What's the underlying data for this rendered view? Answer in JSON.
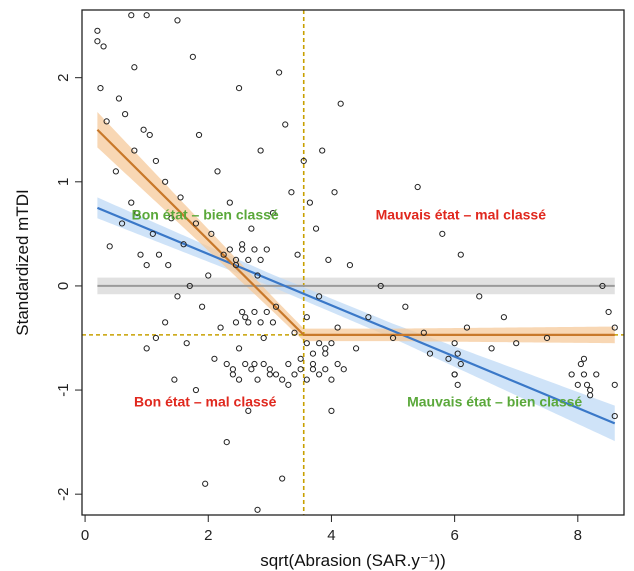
{
  "chart_data": {
    "type": "scatter",
    "xlabel": "sqrt(Abrasion (SAR.y⁻¹))",
    "ylabel": "Standardized mTDI",
    "xlim": [
      -0.05,
      8.75
    ],
    "ylim": [
      -2.2,
      2.65
    ],
    "x_ticks": [
      {
        "v": 0,
        "label": "0"
      },
      {
        "v": 2,
        "label": "2"
      },
      {
        "v": 4,
        "label": "4"
      },
      {
        "v": 6,
        "label": "6"
      },
      {
        "v": 8,
        "label": "8"
      }
    ],
    "y_ticks": [
      {
        "v": -2,
        "label": "-2"
      },
      {
        "v": -1,
        "label": "-1"
      },
      {
        "v": 0,
        "label": "0"
      },
      {
        "v": 1,
        "label": "1"
      },
      {
        "v": 2,
        "label": "2"
      }
    ],
    "grid": false,
    "threshold_x": 3.55,
    "threshold_y": -0.47,
    "threshold_color": "#c8a000",
    "null_line": {
      "y": 0,
      "color": "#9a9a9a",
      "band_color": "#d9d9d9"
    },
    "orange_fit": {
      "color": "#c8782a",
      "band_color": "#f5c99b",
      "points": [
        [
          0.2,
          1.5
        ],
        [
          3.55,
          -0.47
        ],
        [
          8.6,
          -0.47
        ]
      ],
      "band_halfwidth": [
        [
          0.2,
          0.17
        ],
        [
          1.5,
          0.12
        ],
        [
          3.0,
          0.07
        ],
        [
          3.55,
          0.06
        ],
        [
          5.0,
          0.06
        ],
        [
          8.6,
          0.08
        ]
      ]
    },
    "blue_fit": {
      "color": "#3a78c8",
      "band_color": "#bfdaf5",
      "points": [
        [
          0.2,
          0.75
        ],
        [
          8.6,
          -1.32
        ]
      ],
      "band_halfwidth": [
        [
          0.2,
          0.1
        ],
        [
          3.0,
          0.06
        ],
        [
          5.0,
          0.07
        ],
        [
          8.6,
          0.17
        ]
      ]
    },
    "point_color": "#222222",
    "quadrant_labels": [
      {
        "text": "Bon état – bien classé",
        "color": "#5aa83a",
        "x": 1.95,
        "y": 0.64
      },
      {
        "text": "Mauvais état – mal classé",
        "color": "#e0281e",
        "x": 6.1,
        "y": 0.64
      },
      {
        "text": "Bon état – mal classé",
        "color": "#e0281e",
        "x": 1.95,
        "y": -1.16
      },
      {
        "text": "Mauvais état – bien classé",
        "color": "#5aa83a",
        "x": 6.65,
        "y": -1.16
      }
    ],
    "points": [
      [
        0.2,
        2.45
      ],
      [
        0.2,
        2.35
      ],
      [
        0.25,
        1.9
      ],
      [
        0.3,
        2.3
      ],
      [
        0.35,
        1.58
      ],
      [
        0.4,
        0.38
      ],
      [
        0.5,
        1.1
      ],
      [
        0.55,
        1.8
      ],
      [
        0.6,
        0.6
      ],
      [
        0.65,
        1.65
      ],
      [
        0.75,
        0.8
      ],
      [
        0.75,
        2.6
      ],
      [
        0.8,
        1.3
      ],
      [
        0.8,
        2.1
      ],
      [
        0.85,
        0.7
      ],
      [
        0.9,
        0.3
      ],
      [
        0.95,
        1.5
      ],
      [
        1.0,
        -0.6
      ],
      [
        1.0,
        0.2
      ],
      [
        1.0,
        2.6
      ],
      [
        1.05,
        1.45
      ],
      [
        1.1,
        0.5
      ],
      [
        1.15,
        -0.5
      ],
      [
        1.15,
        1.2
      ],
      [
        1.2,
        0.3
      ],
      [
        1.3,
        1.0
      ],
      [
        1.3,
        -0.35
      ],
      [
        1.35,
        0.2
      ],
      [
        1.4,
        0.65
      ],
      [
        1.45,
        -0.9
      ],
      [
        1.5,
        -0.1
      ],
      [
        1.5,
        2.55
      ],
      [
        1.55,
        0.85
      ],
      [
        1.6,
        0.4
      ],
      [
        1.65,
        -0.55
      ],
      [
        1.7,
        0.0
      ],
      [
        1.75,
        2.2
      ],
      [
        1.8,
        -1.0
      ],
      [
        1.8,
        0.6
      ],
      [
        1.85,
        1.45
      ],
      [
        1.9,
        -0.2
      ],
      [
        1.95,
        -1.9
      ],
      [
        2.0,
        0.1
      ],
      [
        2.05,
        0.5
      ],
      [
        2.1,
        -0.7
      ],
      [
        2.15,
        1.1
      ],
      [
        2.2,
        -0.4
      ],
      [
        2.25,
        0.3
      ],
      [
        2.3,
        -1.5
      ],
      [
        2.35,
        0.8
      ],
      [
        2.4,
        -0.85
      ],
      [
        2.45,
        0.2
      ],
      [
        2.5,
        -0.6
      ],
      [
        2.5,
        1.9
      ],
      [
        2.55,
        0.4
      ],
      [
        2.6,
        -0.3
      ],
      [
        2.65,
        -1.2
      ],
      [
        2.7,
        0.55
      ],
      [
        2.75,
        -0.75
      ],
      [
        2.8,
        -2.15
      ],
      [
        2.8,
        0.1
      ],
      [
        2.85,
        1.3
      ],
      [
        2.9,
        -0.5
      ],
      [
        2.95,
        0.35
      ],
      [
        3.0,
        -0.85
      ],
      [
        3.05,
        0.7
      ],
      [
        3.1,
        -0.2
      ],
      [
        3.15,
        2.05
      ],
      [
        3.2,
        -1.85
      ],
      [
        3.25,
        1.55
      ],
      [
        3.3,
        -0.95
      ],
      [
        3.35,
        0.9
      ],
      [
        3.4,
        -0.45
      ],
      [
        3.45,
        0.3
      ],
      [
        3.5,
        -0.7
      ],
      [
        3.55,
        1.2
      ],
      [
        3.6,
        -0.3
      ],
      [
        3.65,
        0.8
      ],
      [
        3.7,
        -0.8
      ],
      [
        3.75,
        0.55
      ],
      [
        3.8,
        -0.1
      ],
      [
        3.85,
        1.3
      ],
      [
        3.9,
        -0.6
      ],
      [
        3.95,
        0.25
      ],
      [
        4.0,
        -1.2
      ],
      [
        4.05,
        0.9
      ],
      [
        4.1,
        -0.4
      ],
      [
        4.15,
        1.75
      ],
      [
        4.2,
        -0.8
      ],
      [
        4.3,
        0.2
      ],
      [
        4.4,
        -0.6
      ],
      [
        4.6,
        -0.3
      ],
      [
        4.8,
        0.0
      ],
      [
        5.0,
        -0.5
      ],
      [
        5.2,
        -0.2
      ],
      [
        5.4,
        0.95
      ],
      [
        5.5,
        -0.45
      ],
      [
        5.6,
        -0.65
      ],
      [
        5.8,
        0.5
      ],
      [
        5.9,
        -0.7
      ],
      [
        6.0,
        -0.85
      ],
      [
        6.1,
        0.3
      ],
      [
        6.2,
        -0.4
      ],
      [
        6.4,
        -0.1
      ],
      [
        6.6,
        -0.6
      ],
      [
        6.8,
        -0.3
      ],
      [
        7.0,
        -0.55
      ],
      [
        7.5,
        -0.5
      ],
      [
        7.9,
        -0.85
      ],
      [
        8.0,
        -0.95
      ],
      [
        8.1,
        -0.7
      ],
      [
        8.2,
        -1.0
      ],
      [
        8.3,
        -0.85
      ],
      [
        8.4,
        0.0
      ],
      [
        8.5,
        -0.25
      ],
      [
        8.6,
        -0.4
      ],
      [
        8.6,
        -0.95
      ],
      [
        8.6,
        -1.25
      ]
    ],
    "cluster_points": [
      [
        2.3,
        -0.75
      ],
      [
        2.4,
        -0.8
      ],
      [
        2.5,
        -0.9
      ],
      [
        2.6,
        -0.75
      ],
      [
        2.7,
        -0.8
      ],
      [
        2.8,
        -0.9
      ],
      [
        2.9,
        -0.75
      ],
      [
        3.0,
        -0.8
      ],
      [
        3.1,
        -0.85
      ],
      [
        3.2,
        -0.9
      ],
      [
        3.3,
        -0.75
      ],
      [
        3.4,
        -0.85
      ],
      [
        3.5,
        -0.8
      ],
      [
        3.6,
        -0.9
      ],
      [
        3.7,
        -0.75
      ],
      [
        3.8,
        -0.85
      ],
      [
        3.9,
        -0.8
      ],
      [
        4.0,
        -0.9
      ],
      [
        4.1,
        -0.75
      ],
      [
        2.45,
        -0.35
      ],
      [
        2.55,
        -0.25
      ],
      [
        2.65,
        -0.35
      ],
      [
        2.75,
        -0.25
      ],
      [
        2.85,
        -0.35
      ],
      [
        2.95,
        -0.25
      ],
      [
        3.05,
        -0.35
      ],
      [
        2.35,
        0.35
      ],
      [
        2.45,
        0.25
      ],
      [
        2.55,
        0.35
      ],
      [
        2.65,
        0.25
      ],
      [
        2.75,
        0.35
      ],
      [
        2.85,
        0.25
      ],
      [
        3.6,
        -0.55
      ],
      [
        3.7,
        -0.65
      ],
      [
        3.8,
        -0.55
      ],
      [
        3.9,
        -0.65
      ],
      [
        4.0,
        -0.55
      ],
      [
        6.0,
        -0.55
      ],
      [
        6.05,
        -0.65
      ],
      [
        6.1,
        -0.75
      ],
      [
        6.0,
        -0.85
      ],
      [
        6.05,
        -0.95
      ],
      [
        8.05,
        -0.75
      ],
      [
        8.1,
        -0.85
      ],
      [
        8.15,
        -0.95
      ],
      [
        8.2,
        -1.05
      ]
    ]
  }
}
